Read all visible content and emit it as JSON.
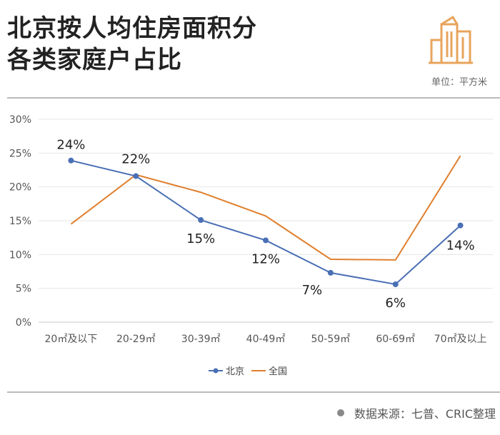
{
  "header": {
    "title_line1": "北京按人均住房面积分",
    "title_line2": "各类家庭户占比",
    "unit": "单位：平方米",
    "logo_icon": "buildings-icon"
  },
  "footer": {
    "source": "数据来源：七普、CRIC整理"
  },
  "chart_data": {
    "type": "line",
    "categories": [
      "20㎡及以下",
      "20-29㎡",
      "30-39㎡",
      "40-49㎡",
      "50-59㎡",
      "60-69㎡",
      "70㎡及以上"
    ],
    "y_ticks": [
      "0%",
      "5%",
      "10%",
      "15%",
      "20%",
      "25%",
      "30%"
    ],
    "ylim": [
      0,
      30
    ],
    "grid": true,
    "legend_position": "bottom",
    "series": [
      {
        "name": "北京",
        "color": "#4a6fb5",
        "values": [
          23.9,
          21.6,
          15.1,
          12.1,
          7.3,
          5.6,
          14.3
        ],
        "labels": [
          "24%",
          "22%",
          "15%",
          "12%",
          "7%",
          "6%",
          "14%"
        ]
      },
      {
        "name": "全国",
        "color": "#e07f2e",
        "values": [
          14.5,
          21.8,
          19.2,
          15.7,
          9.3,
          9.2,
          24.6
        ]
      }
    ]
  }
}
